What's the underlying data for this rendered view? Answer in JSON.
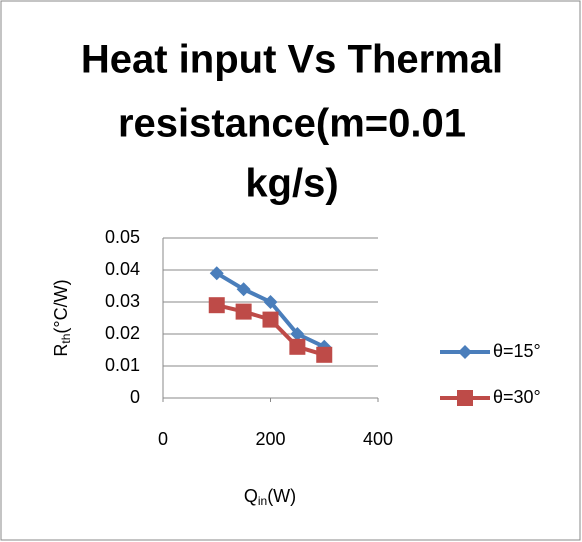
{
  "chart_data": {
    "type": "line",
    "title_lines": [
      "Heat input Vs Thermal",
      "resistance(m=0.01",
      "kg/s)"
    ],
    "y_label": {
      "main": "R",
      "sub": "th",
      "rest": "(°C/W)"
    },
    "x_label": {
      "main": "Q",
      "sub": "in",
      "rest": "(W)"
    },
    "x": [
      100,
      150,
      200,
      250,
      300
    ],
    "series": [
      {
        "name": "θ=15°",
        "color": "#4a7ebb",
        "marker": "diamond",
        "values": [
          0.039,
          0.034,
          0.03,
          0.02,
          0.016
        ]
      },
      {
        "name": "θ=30°",
        "color": "#be4b48",
        "marker": "square",
        "values": [
          0.029,
          0.027,
          0.0245,
          0.016,
          0.0135
        ]
      }
    ],
    "xlim": [
      0,
      400
    ],
    "xticks": [
      0,
      200,
      400
    ],
    "ylim": [
      0,
      0.05
    ],
    "yticks": [
      0,
      0.01,
      0.02,
      0.03,
      0.04,
      0.05
    ],
    "grid": true,
    "legend": "right"
  }
}
